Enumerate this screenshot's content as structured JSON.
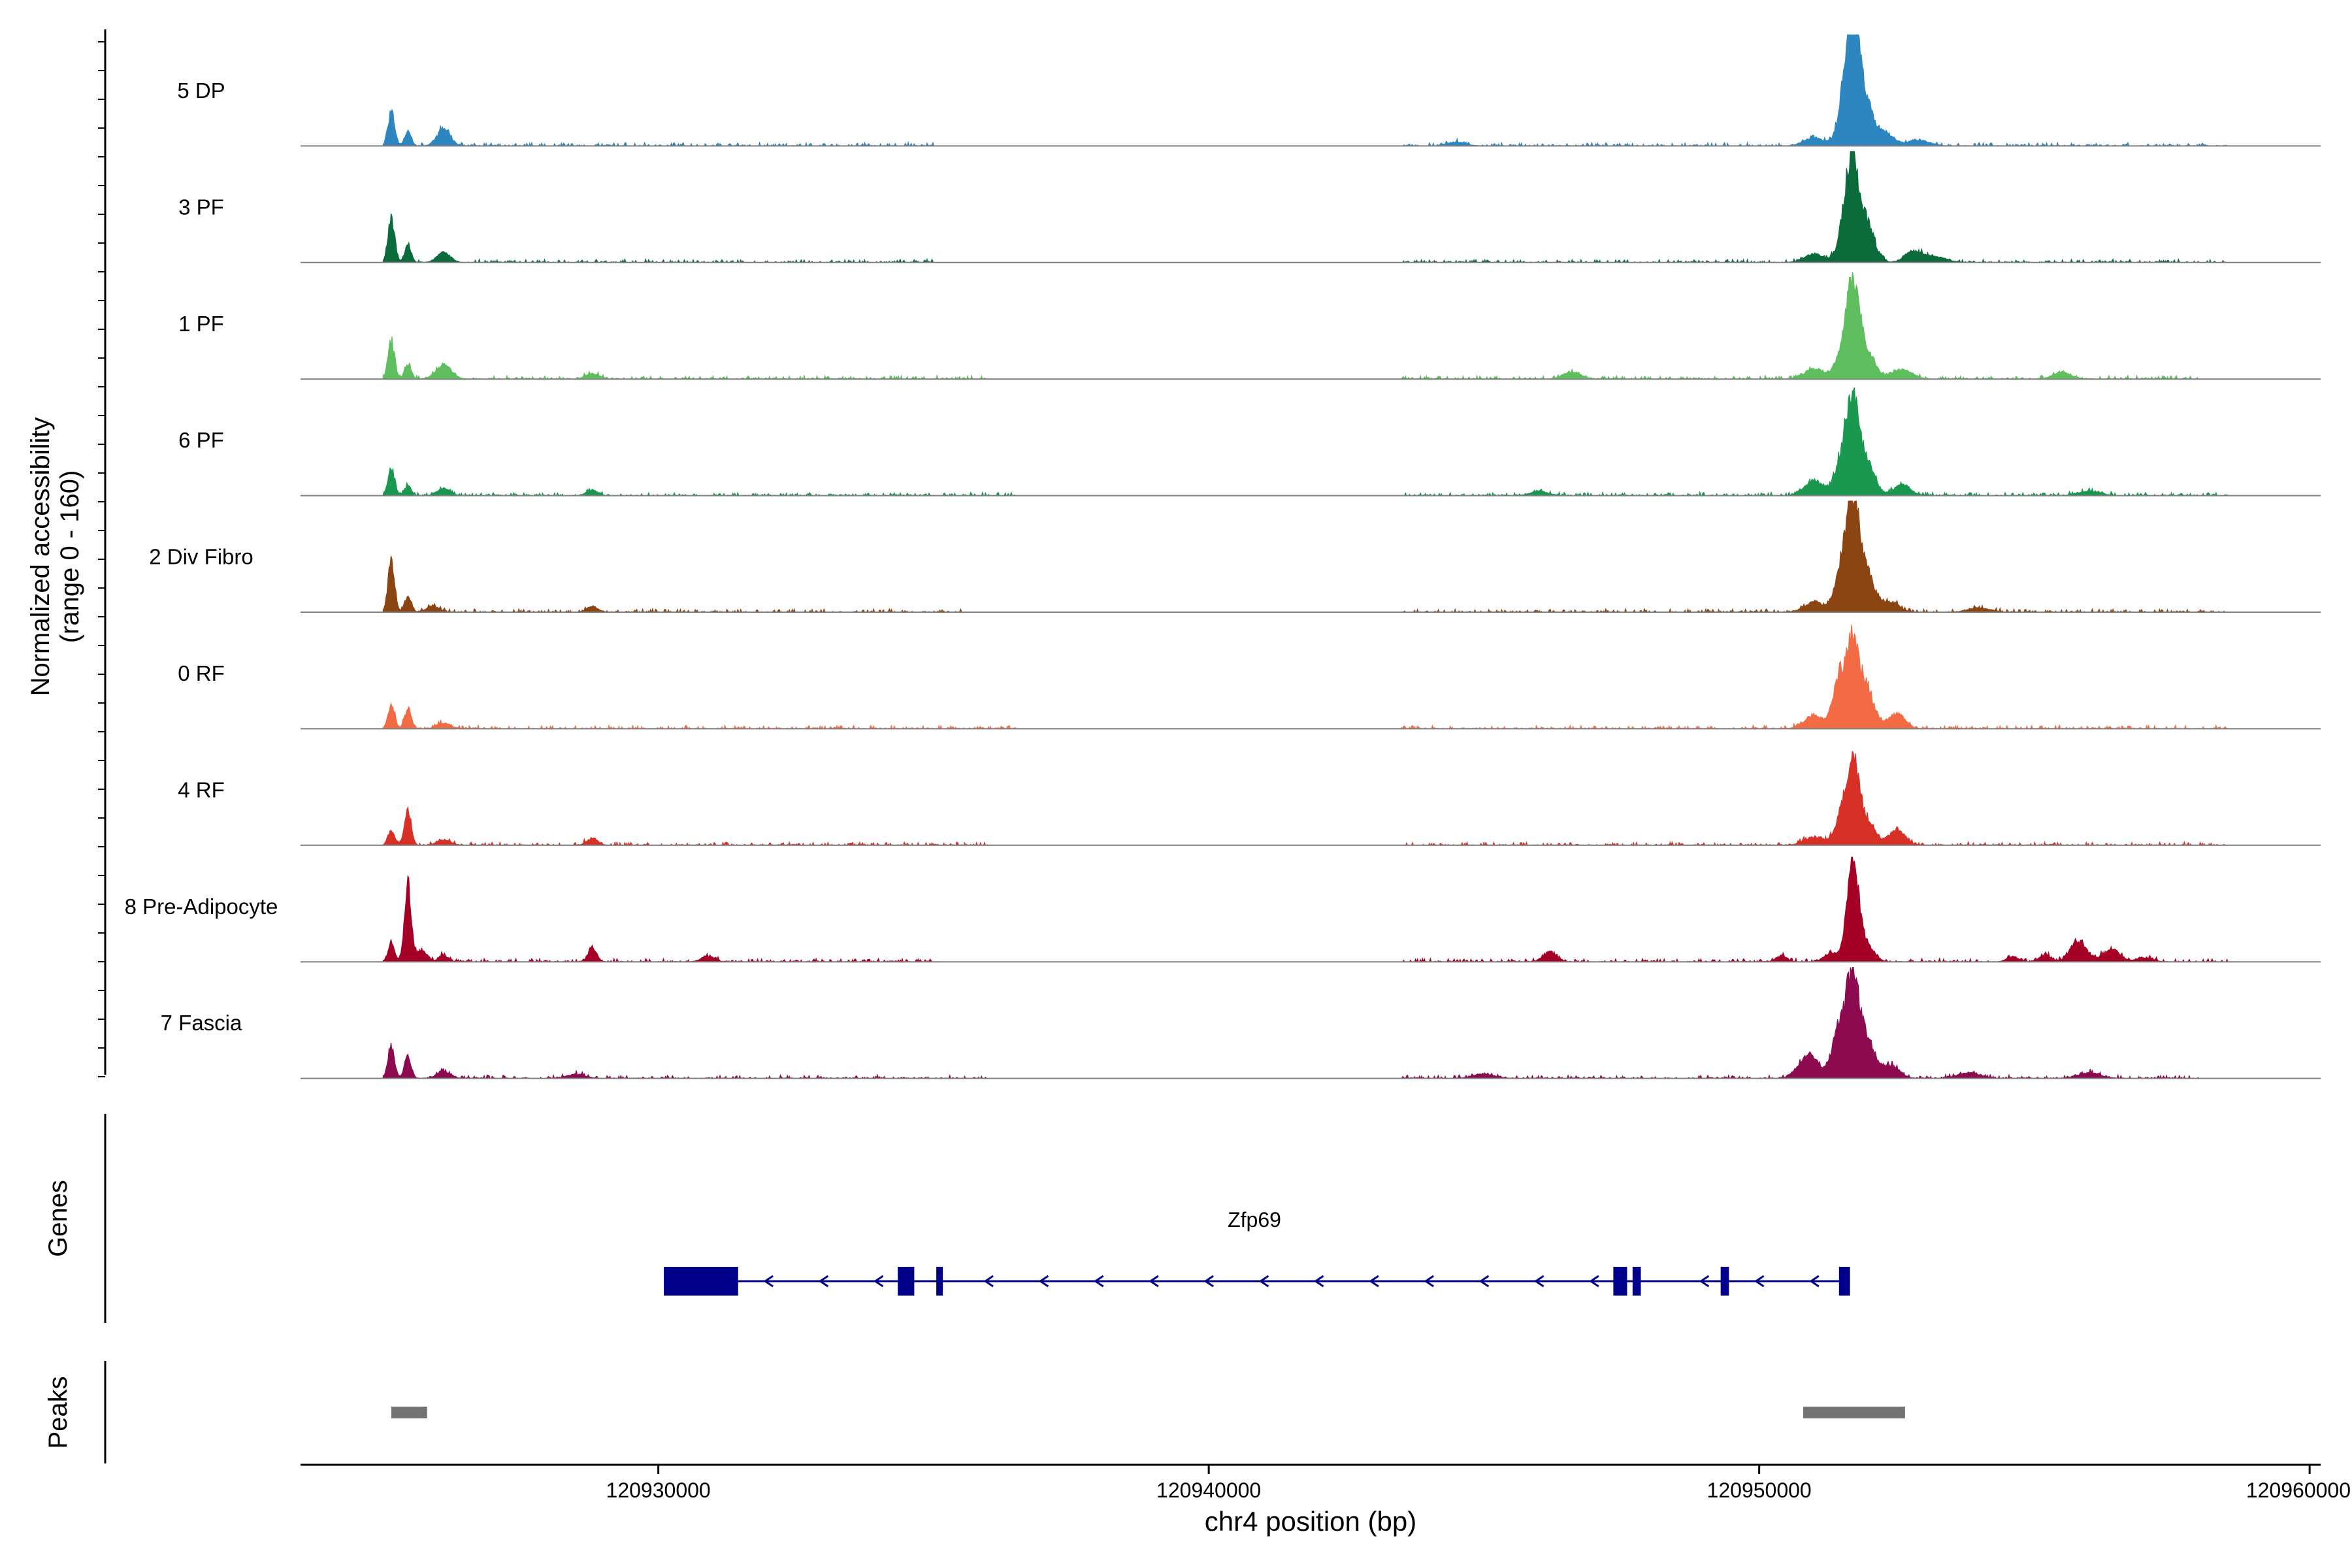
{
  "chart_data": {
    "type": "area",
    "title": "",
    "ylabel_line1": "Normalized accessibility",
    "ylabel_line2": "(range 0 - 160)",
    "ylim": [
      0,
      160
    ],
    "xlabel": "chr4 position (bp)",
    "xlim": [
      120923500,
      120960200
    ],
    "xticks": [
      120930000,
      120940000,
      120950000,
      120960000
    ],
    "xtick_labels": [
      "120930000",
      "120940000",
      "120950000",
      "120960000"
    ],
    "tracks": [
      {
        "name": "5 DP",
        "color": "#2e86c1",
        "peaks": [
          [
            120925150,
            48,
            60
          ],
          [
            120925450,
            20,
            60
          ],
          [
            120926100,
            24,
            120
          ],
          [
            120944500,
            6,
            160
          ],
          [
            120951000,
            12,
            180
          ],
          [
            120951550,
            60,
            120
          ],
          [
            120951700,
            150,
            110
          ],
          [
            120951900,
            70,
            150
          ],
          [
            120952300,
            18,
            150
          ],
          [
            120952900,
            8,
            200
          ]
        ]
      },
      {
        "name": "3 PF",
        "color": "#0b6b3a",
        "peaks": [
          [
            120925150,
            62,
            60
          ],
          [
            120925450,
            22,
            60
          ],
          [
            120926100,
            14,
            120
          ],
          [
            120951000,
            12,
            180
          ],
          [
            120951550,
            45,
            120
          ],
          [
            120951700,
            128,
            110
          ],
          [
            120951950,
            55,
            140
          ],
          [
            120952800,
            16,
            150
          ],
          [
            120953200,
            8,
            200
          ]
        ]
      },
      {
        "name": "1 PF",
        "color": "#5fbf5f",
        "peaks": [
          [
            120925150,
            52,
            60
          ],
          [
            120925450,
            20,
            60
          ],
          [
            120926100,
            20,
            140
          ],
          [
            120928800,
            8,
            120
          ],
          [
            120946600,
            10,
            160
          ],
          [
            120951000,
            14,
            180
          ],
          [
            120951500,
            36,
            120
          ],
          [
            120951700,
            132,
            110
          ],
          [
            120951950,
            40,
            150
          ],
          [
            120952600,
            14,
            180
          ],
          [
            120955500,
            10,
            160
          ]
        ]
      },
      {
        "name": "6 PF",
        "color": "#1a9850",
        "peaks": [
          [
            120925150,
            38,
            60
          ],
          [
            120925450,
            14,
            60
          ],
          [
            120926100,
            10,
            120
          ],
          [
            120928800,
            8,
            100
          ],
          [
            120946000,
            6,
            160
          ],
          [
            120951000,
            20,
            180
          ],
          [
            120951500,
            50,
            120
          ],
          [
            120951700,
            130,
            110
          ],
          [
            120951950,
            45,
            150
          ],
          [
            120952600,
            16,
            150
          ],
          [
            120956000,
            6,
            200
          ]
        ]
      },
      {
        "name": "2 Div Fibro",
        "color": "#8b4513",
        "peaks": [
          [
            120925150,
            72,
            60
          ],
          [
            120925450,
            22,
            60
          ],
          [
            120925900,
            8,
            120
          ],
          [
            120928800,
            8,
            100
          ],
          [
            120951000,
            14,
            180
          ],
          [
            120951500,
            60,
            120
          ],
          [
            120951700,
            150,
            110
          ],
          [
            120951950,
            55,
            150
          ],
          [
            120952400,
            14,
            150
          ],
          [
            120954000,
            6,
            200
          ]
        ]
      },
      {
        "name": "0 RF",
        "color": "#f26b44",
        "peaks": [
          [
            120925150,
            34,
            60
          ],
          [
            120925450,
            28,
            60
          ],
          [
            120926100,
            8,
            120
          ],
          [
            120951000,
            18,
            180
          ],
          [
            120951450,
            72,
            110
          ],
          [
            120951700,
            120,
            110
          ],
          [
            120951950,
            55,
            140
          ],
          [
            120952500,
            22,
            150
          ]
        ]
      },
      {
        "name": "4 RF",
        "color": "#d73027",
        "peaks": [
          [
            120925150,
            22,
            60
          ],
          [
            120925450,
            50,
            60
          ],
          [
            120926100,
            8,
            120
          ],
          [
            120928800,
            10,
            100
          ],
          [
            120951000,
            12,
            180
          ],
          [
            120951500,
            42,
            120
          ],
          [
            120951700,
            108,
            110
          ],
          [
            120951950,
            35,
            150
          ],
          [
            120952500,
            22,
            150
          ]
        ]
      },
      {
        "name": "8 Pre-Adipocyte",
        "color": "#a50026",
        "peaks": [
          [
            120925150,
            26,
            60
          ],
          [
            120925450,
            110,
            60
          ],
          [
            120925700,
            16,
            100
          ],
          [
            120926100,
            10,
            80
          ],
          [
            120928800,
            18,
            80
          ],
          [
            120930900,
            8,
            120
          ],
          [
            120946200,
            14,
            120
          ],
          [
            120950400,
            8,
            100
          ],
          [
            120951300,
            12,
            120
          ],
          [
            120951700,
            130,
            110
          ],
          [
            120951950,
            22,
            140
          ],
          [
            120954600,
            8,
            100
          ],
          [
            120955200,
            10,
            100
          ],
          [
            120955800,
            30,
            150
          ],
          [
            120956400,
            18,
            150
          ],
          [
            120957000,
            6,
            150
          ]
        ]
      },
      {
        "name": "7 Fascia",
        "color": "#8b0a50",
        "peaks": [
          [
            120925150,
            46,
            60
          ],
          [
            120925450,
            32,
            60
          ],
          [
            120926100,
            10,
            120
          ],
          [
            120928500,
            6,
            160
          ],
          [
            120945000,
            6,
            200
          ],
          [
            120950900,
            34,
            180
          ],
          [
            120951450,
            70,
            120
          ],
          [
            120951700,
            145,
            110
          ],
          [
            120951950,
            55,
            150
          ],
          [
            120952400,
            18,
            150
          ],
          [
            120953800,
            8,
            200
          ],
          [
            120956000,
            8,
            200
          ]
        ]
      }
    ],
    "coverage_spans": [
      [
        [
          120925000,
          120935000
        ],
        [
          120943500,
          120958500
        ]
      ],
      [
        [
          120925000,
          120935000
        ],
        [
          120943500,
          120958500
        ]
      ],
      [
        [
          120925000,
          120936000
        ],
        [
          120943500,
          120958000
        ]
      ],
      [
        [
          120925000,
          120936500
        ],
        [
          120943500,
          120958500
        ]
      ],
      [
        [
          120925000,
          120935500
        ],
        [
          120943500,
          120958500
        ]
      ],
      [
        [
          120925000,
          120936500
        ],
        [
          120943500,
          120958500
        ]
      ],
      [
        [
          120925000,
          120936000
        ],
        [
          120943500,
          120958500
        ]
      ],
      [
        [
          120925000,
          120935000
        ],
        [
          120943500,
          120958500
        ]
      ],
      [
        [
          120925000,
          120936000
        ],
        [
          120943500,
          120958000
        ]
      ]
    ],
    "genes_label": "Genes",
    "gene": {
      "name": "Zfp69",
      "color": "#00008b",
      "start": 120930100,
      "end": 120951650,
      "strand": "-",
      "exons": [
        [
          120930100,
          120931450
        ],
        [
          120934350,
          120934650
        ],
        [
          120935050,
          120935150
        ],
        [
          120947350,
          120947600
        ],
        [
          120947700,
          120947850
        ],
        [
          120949300,
          120949450
        ],
        [
          120951450,
          120951650
        ]
      ]
    },
    "peaks_label": "Peaks",
    "peak_regions": [
      [
        120925150,
        120925800
      ],
      [
        120950800,
        120952650
      ]
    ],
    "peak_color": "#737373"
  }
}
